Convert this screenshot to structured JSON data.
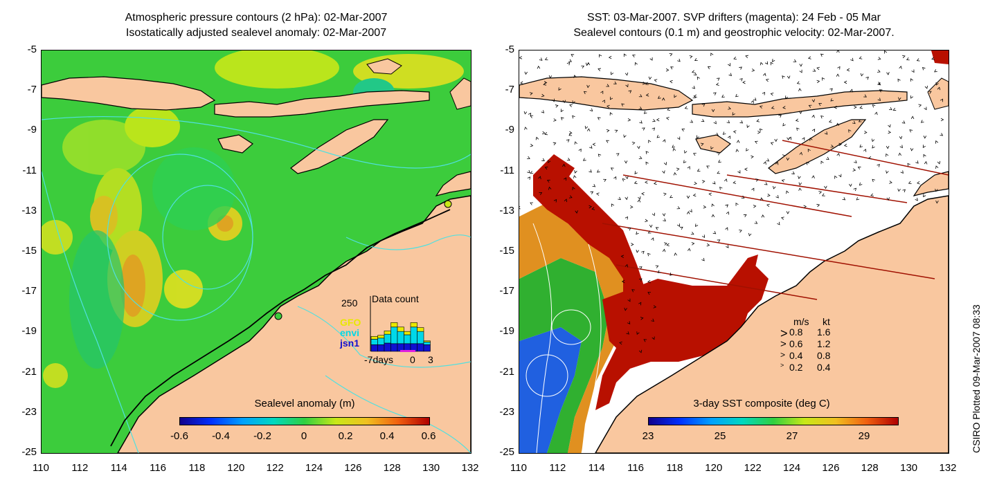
{
  "left_map": {
    "title_line1": "Atmospheric pressure contours (2 hPa): 02-Mar-2007",
    "title_line2": "Isostatically adjusted sealevel anomaly: 02-Mar-2007",
    "colorbar_label": "Sealevel anomaly (m)",
    "colorbar_ticks": [
      "-0.6",
      "-0.4",
      "-0.2",
      "0",
      "0.2",
      "0.4",
      "0.6"
    ],
    "data_count": {
      "title": "Data count",
      "max_label": "250",
      "satellites": [
        {
          "name": "GFO",
          "color": "#e8e800"
        },
        {
          "name": "envi",
          "color": "#00d8e8"
        },
        {
          "name": "jsn1",
          "color": "#1010d0"
        }
      ],
      "x_labels": [
        "-7days",
        "0",
        "3"
      ],
      "bars": [
        {
          "jsn1": 0.12,
          "envi": 0.1,
          "GFO": 0.05
        },
        {
          "jsn1": 0.12,
          "envi": 0.12,
          "GFO": 0.05
        },
        {
          "jsn1": 0.15,
          "envi": 0.16,
          "GFO": 0.06
        },
        {
          "jsn1": 0.14,
          "envi": 0.3,
          "GFO": 0.08
        },
        {
          "jsn1": 0.14,
          "envi": 0.22,
          "GFO": 0.08
        },
        {
          "jsn1": 0.14,
          "envi": 0.16,
          "GFO": 0.06
        },
        {
          "jsn1": 0.14,
          "envi": 0.3,
          "GFO": 0.08
        },
        {
          "jsn1": 0.14,
          "envi": 0.22,
          "GFO": 0.07
        },
        {
          "jsn1": 0.12,
          "envi": 0.05,
          "GFO": 0.02
        }
      ]
    }
  },
  "right_map": {
    "title_line1": "SST: 03-Mar-2007. SVP drifters (magenta): 24 Feb - 05 Mar",
    "title_line2": "Sealevel contours (0.1 m) and geostrophic velocity: 02-Mar-2007.",
    "colorbar_label": "3-day SST composite (deg C)",
    "colorbar_ticks": [
      "23",
      "25",
      "27",
      "29"
    ],
    "velocity_legend": {
      "header_ms": "m/s",
      "header_kt": "kt",
      "rows": [
        {
          "ms": "0.8",
          "kt": "1.6"
        },
        {
          "ms": "0.6",
          "kt": "1.2"
        },
        {
          "ms": "0.4",
          "kt": "0.8"
        },
        {
          "ms": "0.2",
          "kt": "0.4"
        }
      ]
    }
  },
  "axes": {
    "lat_ticks": [
      "-5",
      "-7",
      "-9",
      "-11",
      "-13",
      "-15",
      "-17",
      "-19",
      "-21",
      "-23",
      "-25"
    ],
    "lon_ticks": [
      "110",
      "112",
      "114",
      "116",
      "118",
      "120",
      "122",
      "124",
      "126",
      "128",
      "130",
      "132"
    ]
  },
  "credit": "CSIRO Plotted 09-Mar-2007 08:33",
  "colors": {
    "land": "#f9c79f",
    "sea_green": "#33cc33",
    "coast": "#000000"
  }
}
